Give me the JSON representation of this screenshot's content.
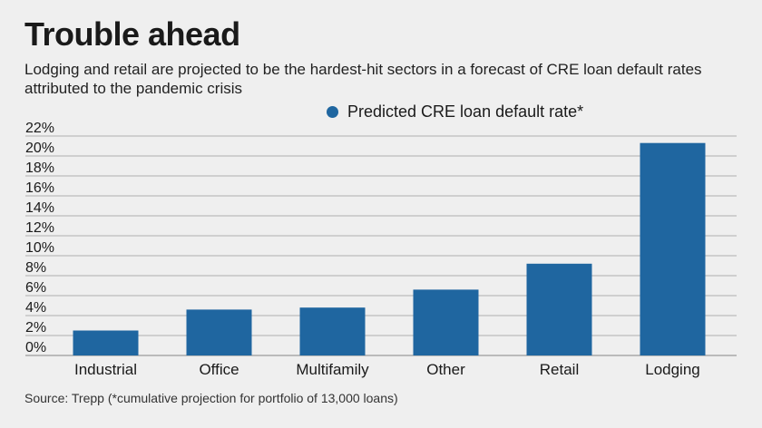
{
  "title": "Trouble ahead",
  "subtitle": "Lodging and retail are projected to be the hardest-hit sectors in a forecast of CRE loan default rates attributed to the pandemic crisis",
  "source": "Source: Trepp (*cumulative projection for portfolio of 13,000 loans)",
  "colors": {
    "bar": "#1f66a0",
    "grid": "#9a9a9a",
    "background": "#efefef"
  },
  "chart_data": {
    "type": "bar",
    "title": "Trouble ahead",
    "categories": [
      "Industrial",
      "Office",
      "Multifamily",
      "Other",
      "Retail",
      "Lodging"
    ],
    "series": [
      {
        "name": "Predicted CRE loan default rate*",
        "values": [
          2.5,
          4.6,
          4.8,
          6.6,
          9.2,
          21.3
        ]
      }
    ],
    "yticks": [
      "0%",
      "2%",
      "4%",
      "6%",
      "8%",
      "10%",
      "12%",
      "14%",
      "16%",
      "18%",
      "20%",
      "22%"
    ],
    "ylim": [
      0,
      22
    ],
    "grid": true,
    "legend": "top-center"
  }
}
